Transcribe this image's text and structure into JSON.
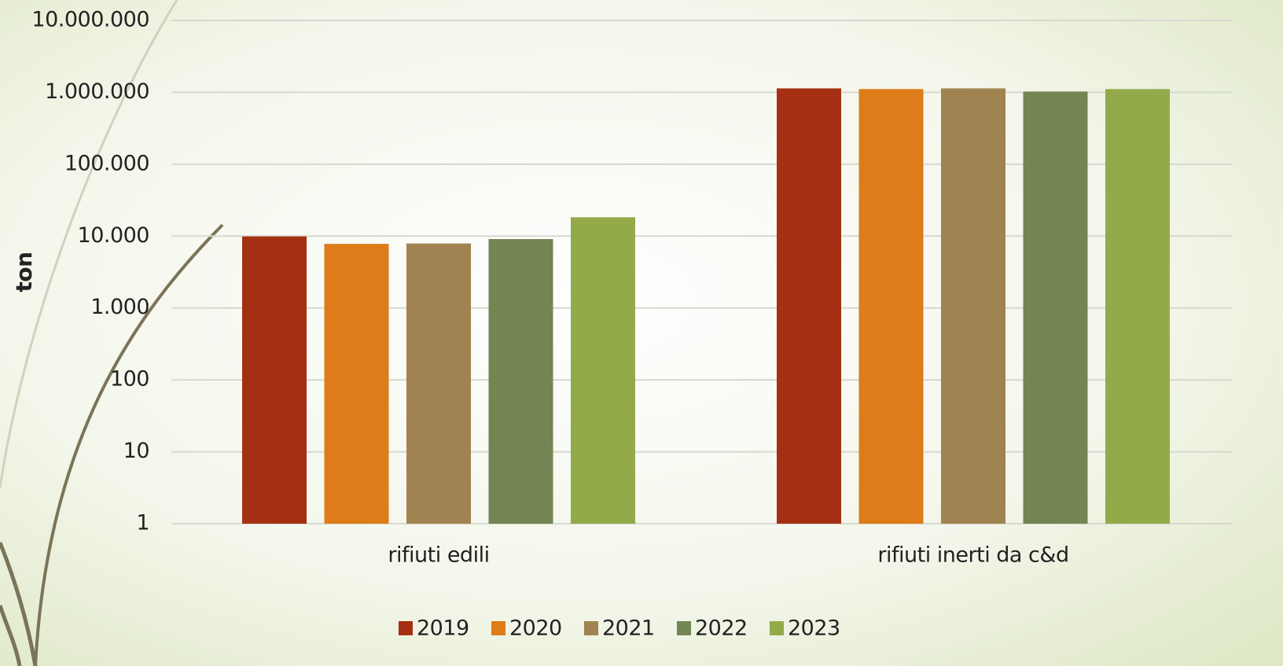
{
  "chart_data": {
    "type": "bar",
    "y_label": "ton",
    "categories": [
      "rifiuti edili",
      "rifiuti inerti da c&d"
    ],
    "series": [
      {
        "name": "2019",
        "color": "#a52f12",
        "values": [
          9900,
          1135000
        ]
      },
      {
        "name": "2020",
        "color": "#dd7c19",
        "values": [
          7800,
          1110000
        ]
      },
      {
        "name": "2021",
        "color": "#a08350",
        "values": [
          7900,
          1135000
        ]
      },
      {
        "name": "2022",
        "color": "#728552",
        "values": [
          9100,
          1025000
        ]
      },
      {
        "name": "2023",
        "color": "#93aa4b",
        "values": [
          18300,
          1110000
        ]
      }
    ],
    "ylim": [
      1,
      10000000
    ],
    "yticks": [
      1,
      10,
      100,
      {
        "value": 1000,
        "label": "1.000"
      },
      {
        "value": 10000,
        "label": "10.000"
      },
      {
        "value": 100000,
        "label": "100.000"
      },
      {
        "value": 1000000,
        "label": "1.000.000"
      },
      {
        "value": 10000000,
        "label": "10.000.000"
      }
    ],
    "log_scale": true,
    "grid": true,
    "legend": "bottom"
  }
}
